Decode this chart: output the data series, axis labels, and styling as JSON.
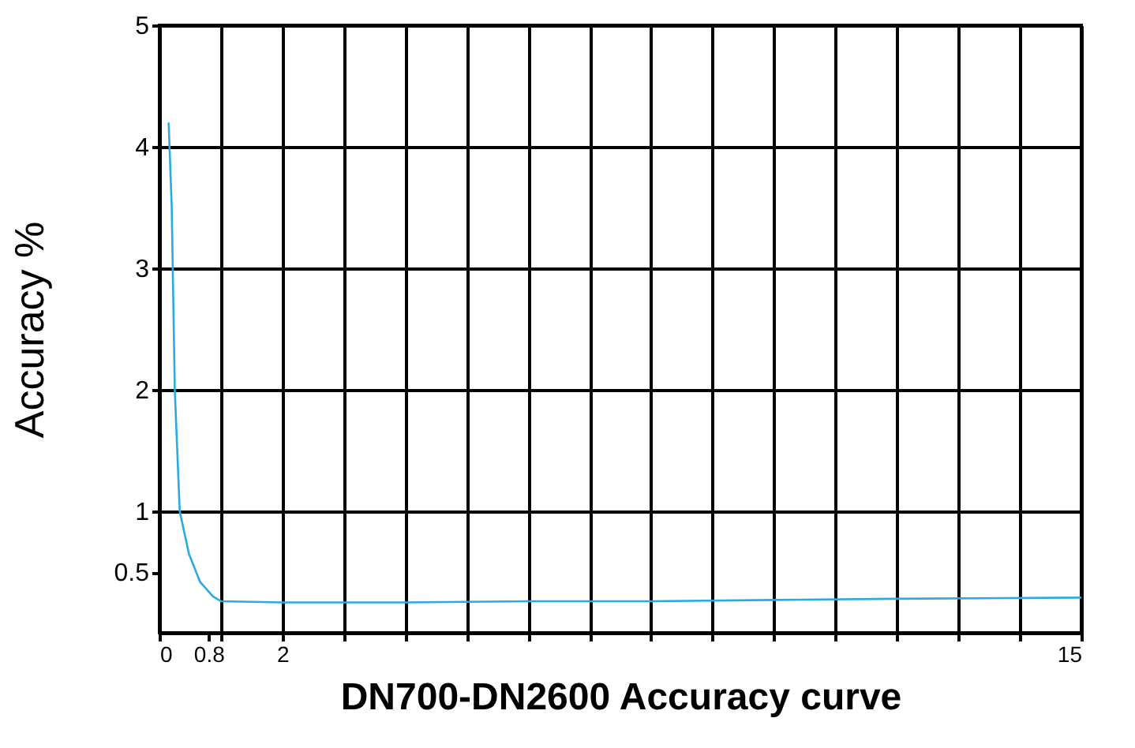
{
  "chart_data": {
    "type": "line",
    "xlabel": "DN700-DN2600 Accuracy curve",
    "ylabel": "Accuracy   %",
    "x": [
      0.15,
      0.2,
      0.25,
      0.33,
      0.48,
      0.66,
      0.87,
      1.0,
      2,
      4,
      6,
      8,
      10,
      12,
      15
    ],
    "series": [
      {
        "color": "#29abe2",
        "values": [
          4.2,
          3.5,
          2.0,
          1.0,
          0.65,
          0.42,
          0.3,
          0.26,
          0.25,
          0.25,
          0.26,
          0.26,
          0.27,
          0.28,
          0.29
        ]
      }
    ],
    "xlim": [
      0,
      15
    ],
    "ylim": [
      0,
      5
    ],
    "xticks": [
      0,
      0.8,
      {
        "value": 1,
        "label": null
      },
      2,
      {
        "value": 3,
        "label": null
      },
      {
        "value": 4,
        "label": null
      },
      {
        "value": 5,
        "label": null
      },
      {
        "value": 6,
        "label": null
      },
      {
        "value": 7,
        "label": null
      },
      {
        "value": 8,
        "label": null
      },
      {
        "value": 9,
        "label": null
      },
      {
        "value": 10,
        "label": null
      },
      {
        "value": 11,
        "label": null
      },
      {
        "value": 12,
        "label": null
      },
      {
        "value": 13,
        "label": null
      },
      {
        "value": 14,
        "label": null
      },
      15
    ],
    "yticks": [
      0.5,
      1,
      2,
      3,
      4,
      5
    ],
    "grid": true,
    "marker": "none",
    "line_style": "solid",
    "legend": false
  }
}
